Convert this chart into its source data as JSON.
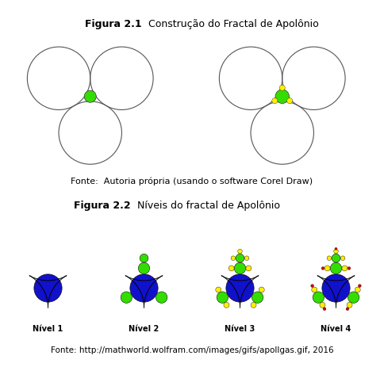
{
  "title1_bold": "Figura 2.1",
  "title1_normal": "  Construção do Fractal de Apolônio",
  "fonte1": "Fonte:  Autoria própria (usando o software Corel Draw)",
  "title2_bold": "Figura 2.2",
  "title2_normal": "  Níveis do fractal de Apolônio",
  "fonte2": "Fonte: http://mathworld.wolfram.com/images/gifs/apollgas.gif, 2016",
  "bg_color": "#ffffff",
  "green_color": "#33dd00",
  "blue_color": "#1111cc",
  "yellow_color": "#ffee00",
  "red_color": "#cc0000",
  "nivel_labels": [
    "Nível 1",
    "Nível 2",
    "Nível 3",
    "Nível 4"
  ]
}
